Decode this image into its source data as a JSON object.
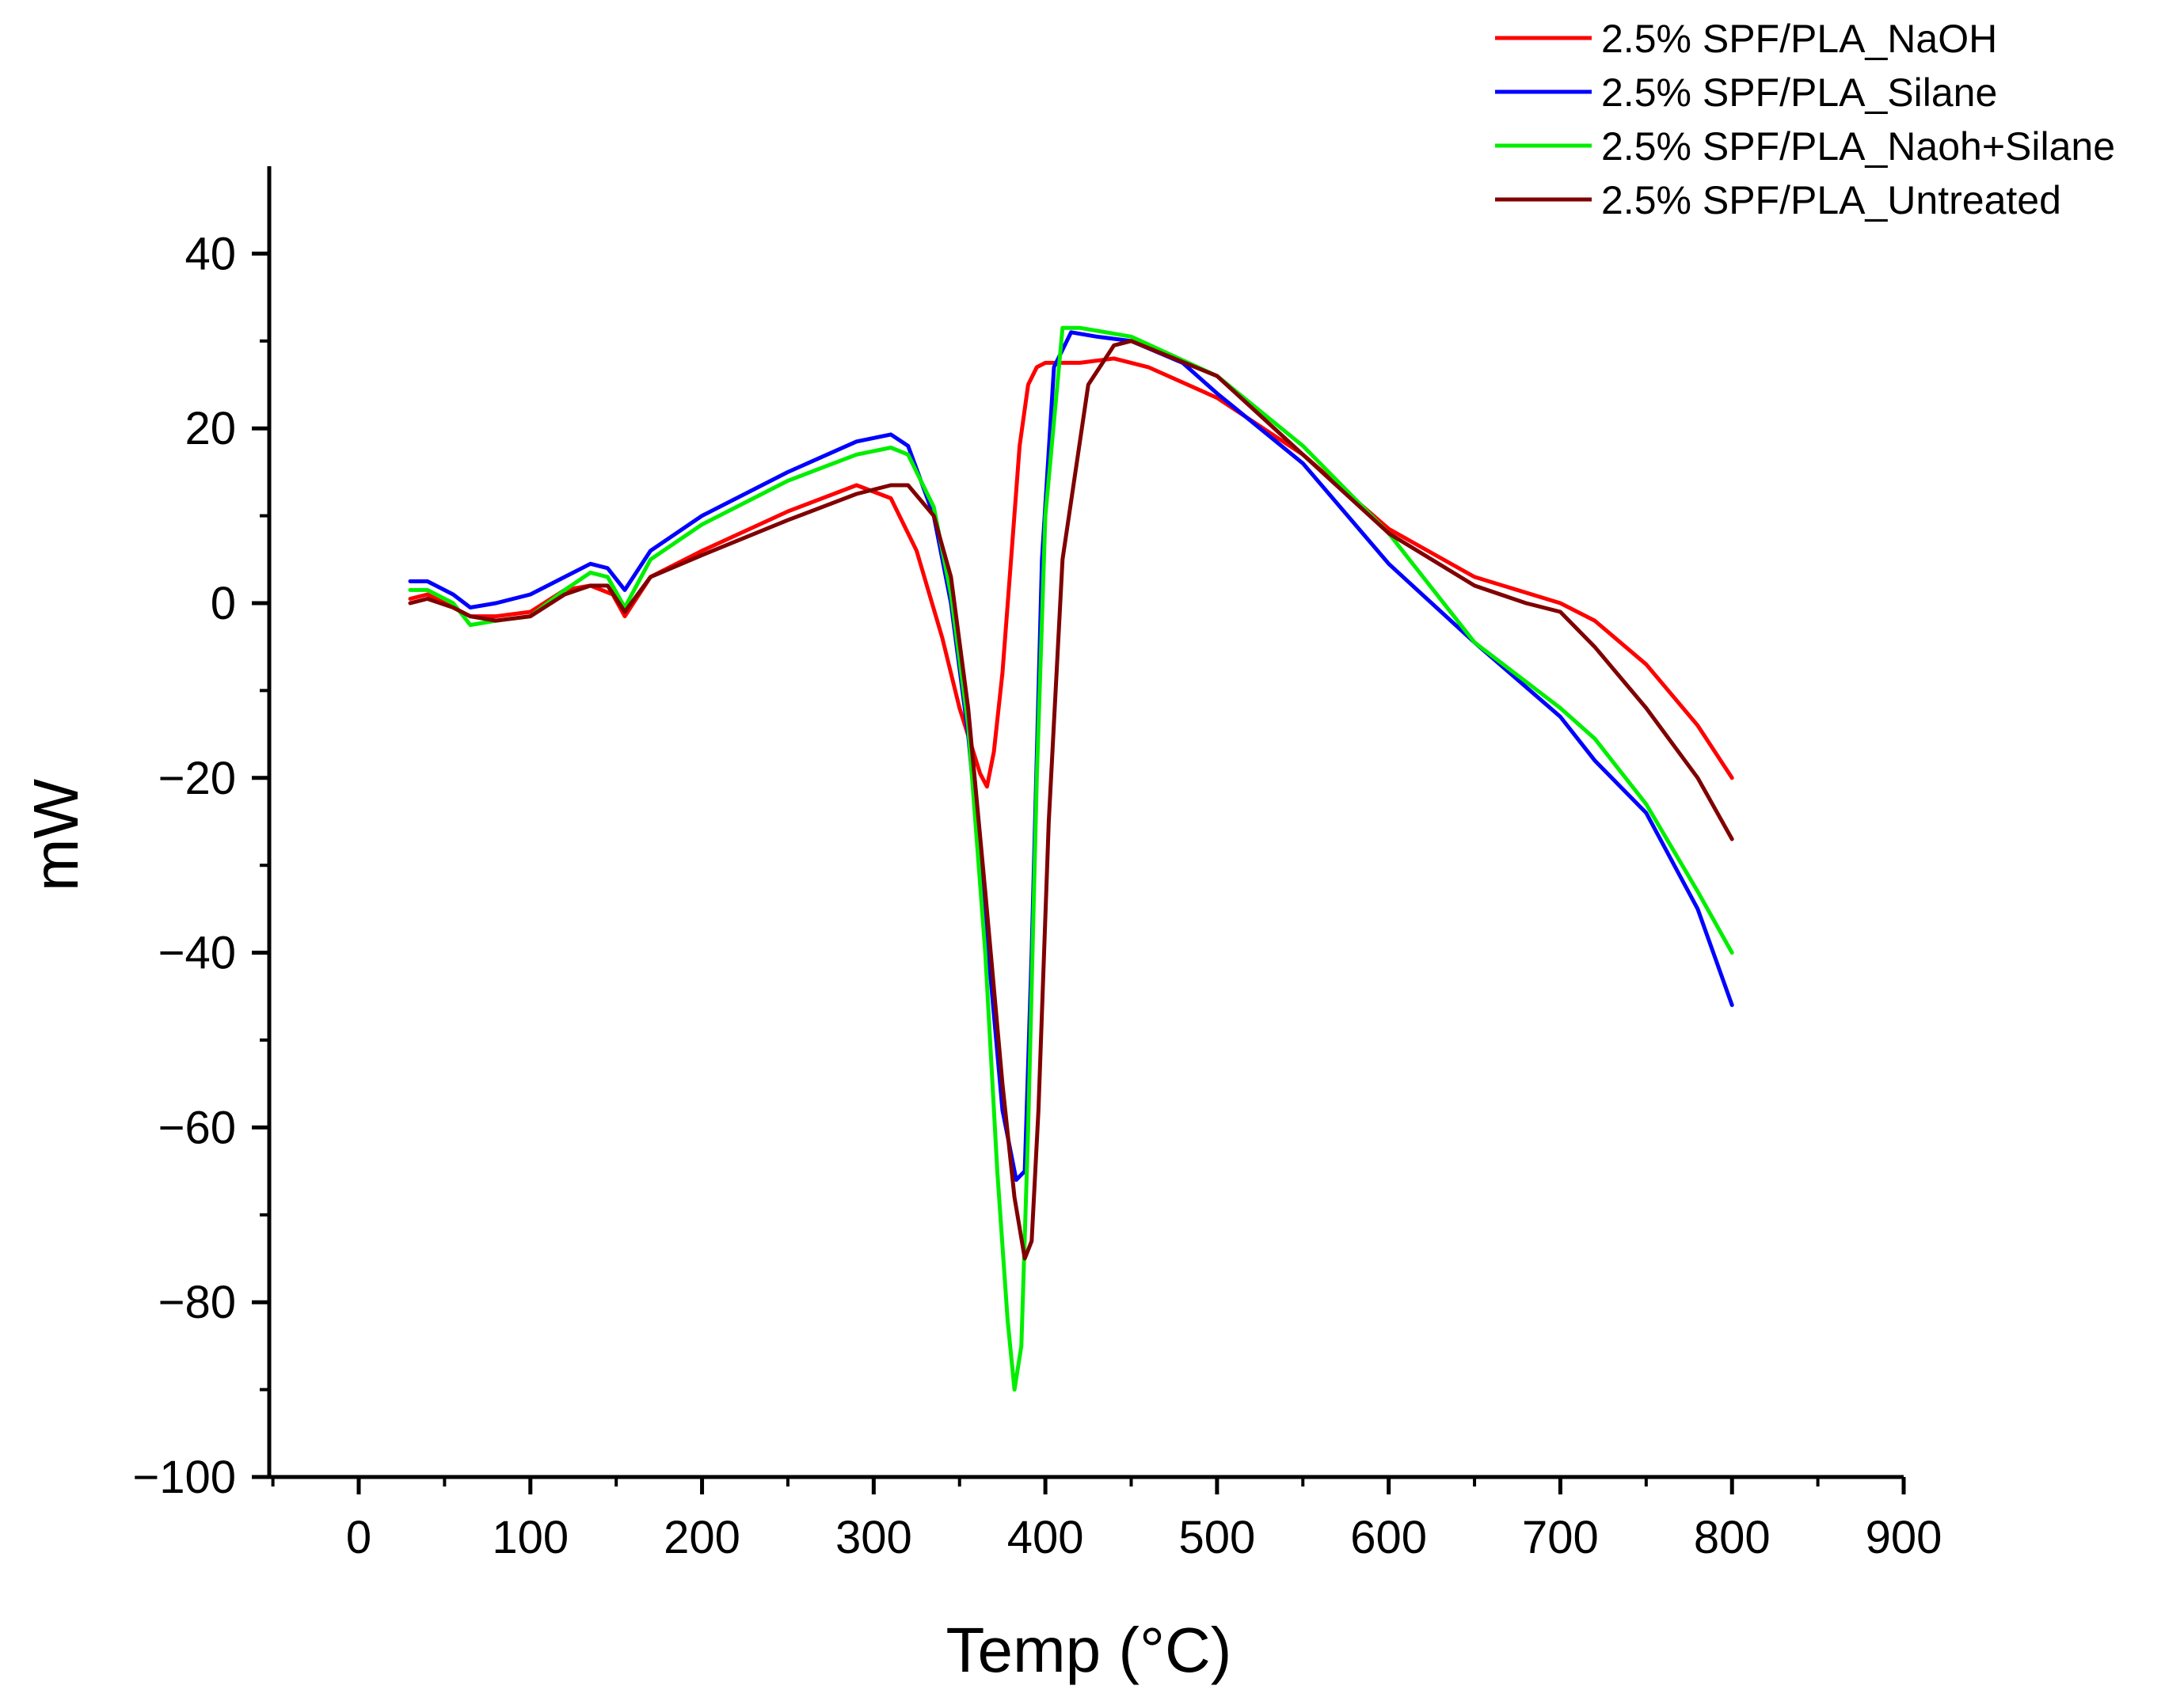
{
  "chart_data": {
    "type": "line",
    "title": "",
    "xlabel": "Temp (°C)",
    "ylabel": "mW",
    "xlim": [
      -50,
      900
    ],
    "ylim": [
      -100,
      50
    ],
    "x_ticks": [
      0,
      100,
      200,
      300,
      400,
      500,
      600,
      700,
      800,
      900
    ],
    "x_tick_labels": [
      "0",
      "100",
      "200",
      "300",
      "400",
      "500",
      "600",
      "700",
      "800",
      "900"
    ],
    "y_ticks": [
      -100,
      -80,
      -60,
      -40,
      -20,
      0,
      20,
      40
    ],
    "y_tick_labels": [
      "−100",
      "−80",
      "−60",
      "−40",
      "−20",
      "0",
      "20",
      "40"
    ],
    "grid": false,
    "legend_position": "top-right",
    "series": [
      {
        "name": "2.5% SPF/PLA_NaOH",
        "color": "#ff0000",
        "x": [
          30,
          40,
          55,
          65,
          80,
          100,
          120,
          135,
          148,
          155,
          170,
          200,
          250,
          290,
          310,
          325,
          340,
          350,
          358,
          362,
          366,
          370,
          375,
          380,
          385,
          390,
          395,
          400,
          420,
          440,
          460,
          500,
          550,
          600,
          650,
          700,
          720,
          750,
          780,
          800
        ],
        "y": [
          0.5,
          1,
          -0.5,
          -1.5,
          -1.5,
          -1,
          1.5,
          2,
          1,
          -1.5,
          3,
          6,
          10.5,
          13.5,
          12,
          6,
          -4,
          -12,
          -17,
          -19.5,
          -21,
          -17,
          -8,
          5,
          18,
          25,
          27,
          27.5,
          27.5,
          28,
          27,
          23.5,
          17,
          8.5,
          3,
          0,
          -2,
          -7,
          -14,
          -20
        ]
      },
      {
        "name": "2.5% SPF/PLA_Silane",
        "color": "#0000ff",
        "x": [
          30,
          40,
          55,
          65,
          80,
          100,
          120,
          135,
          145,
          155,
          170,
          200,
          250,
          290,
          310,
          320,
          335,
          345,
          355,
          365,
          375,
          383,
          388,
          392,
          398,
          405,
          415,
          430,
          450,
          480,
          500,
          550,
          600,
          650,
          700,
          720,
          750,
          780,
          800
        ],
        "y": [
          2.5,
          2.5,
          1,
          -0.5,
          0,
          1,
          3,
          4.5,
          4,
          1.5,
          6,
          10,
          15,
          18.5,
          19.3,
          18,
          10,
          0,
          -15,
          -36,
          -58,
          -66,
          -65,
          -40,
          5,
          27,
          31,
          30.5,
          30,
          27.5,
          24,
          16,
          4.5,
          -4.5,
          -13,
          -18,
          -24,
          -35,
          -46
        ]
      },
      {
        "name": "2.5% SPF/PLA_Naoh+Silane",
        "color": "#00ee00",
        "x": [
          30,
          40,
          55,
          65,
          80,
          100,
          120,
          135,
          145,
          155,
          170,
          200,
          250,
          290,
          310,
          320,
          335,
          345,
          355,
          365,
          372,
          378,
          382,
          386,
          390,
          395,
          400,
          410,
          420,
          450,
          500,
          550,
          600,
          650,
          700,
          720,
          750,
          780,
          800
        ],
        "y": [
          1.5,
          1.5,
          0,
          -2.5,
          -2,
          -1.5,
          1.5,
          3.5,
          3,
          -0.5,
          5,
          9,
          14,
          17,
          17.8,
          17,
          11,
          1,
          -14,
          -40,
          -65,
          -82,
          -90,
          -85,
          -60,
          -20,
          10,
          31.5,
          31.5,
          30.5,
          26,
          18,
          8,
          -4.5,
          -12,
          -15.5,
          -23,
          -33,
          -40
        ]
      },
      {
        "name": "2.5% SPF/PLA_Untreated",
        "color": "#800000",
        "x": [
          30,
          40,
          55,
          65,
          80,
          100,
          120,
          135,
          145,
          155,
          170,
          200,
          250,
          290,
          310,
          320,
          335,
          345,
          355,
          365,
          375,
          382,
          388,
          392,
          396,
          402,
          410,
          425,
          440,
          450,
          500,
          550,
          600,
          650,
          680,
          700,
          720,
          750,
          780,
          800
        ],
        "y": [
          0,
          0.5,
          -0.5,
          -1.5,
          -2,
          -1.5,
          1,
          2,
          2,
          -1,
          3,
          5.5,
          9.5,
          12.5,
          13.5,
          13.5,
          10,
          3,
          -12,
          -33,
          -55,
          -68,
          -75,
          -73,
          -58,
          -25,
          5,
          25,
          29.5,
          30,
          26,
          17,
          8,
          2,
          0,
          -1,
          -5,
          -12,
          -20,
          -27
        ]
      }
    ]
  }
}
